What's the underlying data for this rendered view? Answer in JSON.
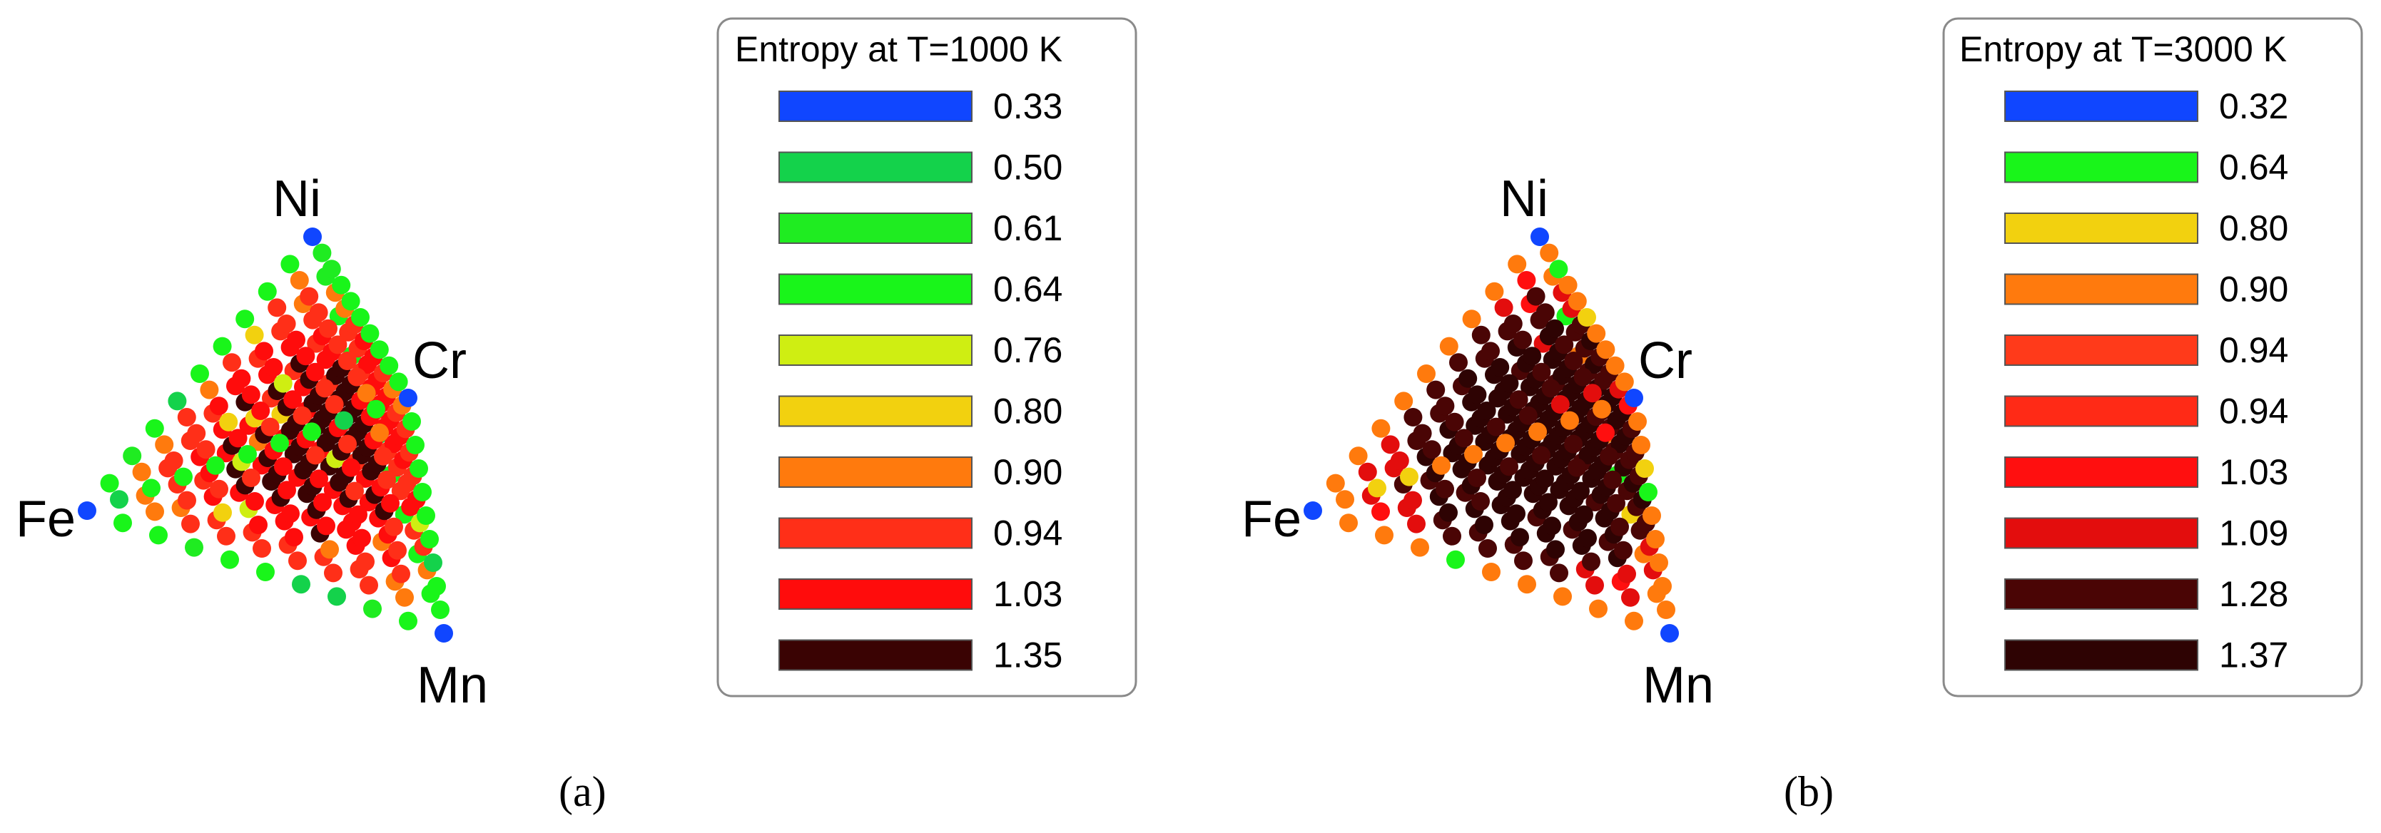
{
  "chart_data": [
    {
      "type": "scatter",
      "subtype": "ternary-quaternary",
      "caption": "(a)",
      "legend_title": "Entropy at T=1000 K",
      "legend": [
        {
          "value": "0.33",
          "color": "#1046ff"
        },
        {
          "value": "0.50",
          "color": "#14d24b"
        },
        {
          "value": "0.61",
          "color": "#1fec21"
        },
        {
          "value": "0.64",
          "color": "#19f51a"
        },
        {
          "value": "0.76",
          "color": "#cfee12"
        },
        {
          "value": "0.80",
          "color": "#f2d10f"
        },
        {
          "value": "0.90",
          "color": "#ff7a0d"
        },
        {
          "value": "0.94",
          "color": "#ff2f18"
        },
        {
          "value": "1.03",
          "color": "#ff0c0c"
        },
        {
          "value": "1.35",
          "color": "#3a0303"
        }
      ],
      "elements": [
        "Ni",
        "Cr",
        "Fe",
        "Mn"
      ],
      "grid_steps": 10,
      "seed": 7,
      "profile": "a"
    },
    {
      "type": "scatter",
      "subtype": "ternary-quaternary",
      "caption": "(b)",
      "legend_title": "Entropy at T=3000 K",
      "legend": [
        {
          "value": "0.32",
          "color": "#1046ff"
        },
        {
          "value": "0.64",
          "color": "#19f51a"
        },
        {
          "value": "0.80",
          "color": "#f2d10f"
        },
        {
          "value": "0.90",
          "color": "#ff7a0d"
        },
        {
          "value": "0.94",
          "color": "#ff3a1a"
        },
        {
          "value": "0.94",
          "color": "#ff2a16"
        },
        {
          "value": "1.03",
          "color": "#ff0f0f"
        },
        {
          "value": "1.09",
          "color": "#e30d0d"
        },
        {
          "value": "1.28",
          "color": "#4a0505"
        },
        {
          "value": "1.37",
          "color": "#2e0303"
        }
      ],
      "elements": [
        "Ni",
        "Cr",
        "Fe",
        "Mn"
      ],
      "grid_steps": 10,
      "seed": 11,
      "profile": "b"
    }
  ]
}
